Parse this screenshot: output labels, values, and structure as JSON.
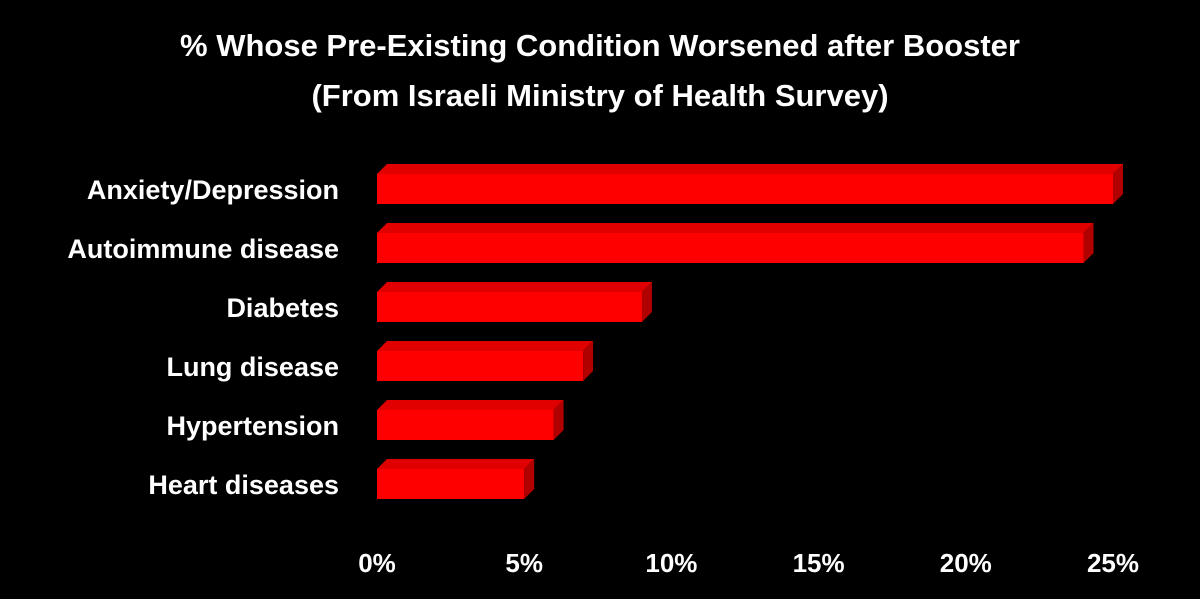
{
  "chart_data": {
    "type": "bar",
    "orientation": "horizontal",
    "title": "% Whose Pre-Existing Condition Worsened after Booster",
    "subtitle": "(From Israeli Ministry of Health Survey)",
    "categories": [
      "Anxiety/Depression",
      "Autoimmune disease",
      "Diabetes",
      "Lung disease",
      "Hypertension",
      "Heart diseases"
    ],
    "values": [
      25,
      24,
      9,
      7,
      6,
      5
    ],
    "xlim": [
      0,
      25
    ],
    "xticks": [
      0,
      5,
      10,
      15,
      20,
      25
    ],
    "xtick_labels": [
      "0%",
      "5%",
      "10%",
      "15%",
      "20%",
      "25%"
    ],
    "xlabel": "",
    "ylabel": "",
    "grid": false,
    "legend": "none",
    "colors": {
      "background": "#000000",
      "text": "#ffffff",
      "bar_front": "#ff0000",
      "bar_top": "#e00000",
      "bar_side": "#b00000"
    }
  }
}
